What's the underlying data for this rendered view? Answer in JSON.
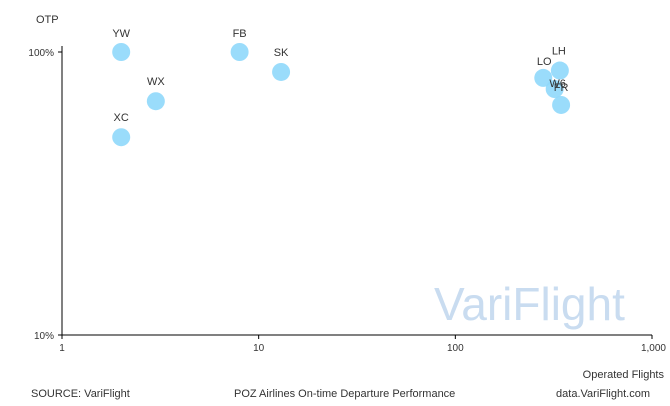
{
  "chart_data": {
    "type": "scatter",
    "title": "POZ  Airlines On-time Departure Performance",
    "xlabel": "Operated Flights",
    "ylabel": "OTP",
    "x_scale": "log",
    "y_scale": "log",
    "xlim": [
      1,
      1000
    ],
    "ylim": [
      10,
      100
    ],
    "x_ticks": [
      {
        "value": 1,
        "label": "1"
      },
      {
        "value": 10,
        "label": "10"
      },
      {
        "value": 100,
        "label": "100"
      },
      {
        "value": 1000,
        "label": "1,000"
      }
    ],
    "y_ticks": [
      {
        "value": 10,
        "label": "10%"
      },
      {
        "value": 100,
        "label": "100%"
      }
    ],
    "grid": false,
    "legend": "none",
    "marker_color": "#8fd8fb",
    "points": [
      {
        "label": "YW",
        "x": 2,
        "y": 100
      },
      {
        "label": "FB",
        "x": 8,
        "y": 100
      },
      {
        "label": "SK",
        "x": 13,
        "y": 85
      },
      {
        "label": "WX",
        "x": 3,
        "y": 67
      },
      {
        "label": "XC",
        "x": 2,
        "y": 50
      },
      {
        "label": "LO",
        "x": 280,
        "y": 81
      },
      {
        "label": "LH",
        "x": 340,
        "y": 86
      },
      {
        "label": "W6",
        "x": 320,
        "y": 74
      },
      {
        "label": "FR",
        "x": 345,
        "y": 65
      }
    ]
  },
  "footer": {
    "source": "SOURCE: VariFlight",
    "title": "POZ  Airlines On-time Departure Performance",
    "site": "data.VariFlight.com"
  },
  "watermark": {
    "text": "VariFlight",
    "color": "#c9dcf0"
  }
}
